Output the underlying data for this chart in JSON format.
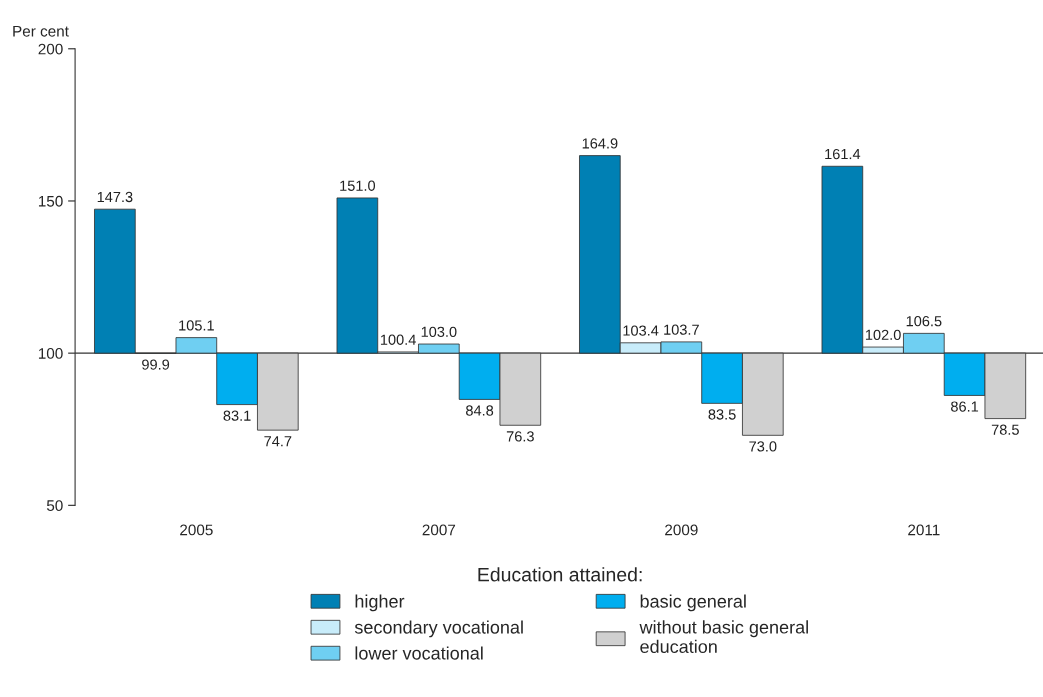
{
  "chart_data": {
    "type": "bar",
    "ylabel": "Per cent",
    "legend_title": "Education attained:",
    "categories": [
      "2005",
      "2007",
      "2009",
      "2011"
    ],
    "series": [
      {
        "name": "higher",
        "color": "#0080b4",
        "base": [
          100,
          100,
          100,
          100
        ],
        "values": [
          47.3,
          51.0,
          64.9,
          61.4
        ],
        "value_labels": [
          "147.3",
          "151.0",
          "164.9",
          "161.4"
        ]
      },
      {
        "name": "secondary vocational",
        "color": "#c8ecfa",
        "base": [
          100,
          100,
          100,
          100
        ],
        "values": [
          -0.1,
          0.4,
          3.4,
          2.0
        ],
        "value_labels": [
          "99.9",
          "100.4",
          "103.4",
          "102.0"
        ]
      },
      {
        "name": "lower vocational",
        "color": "#6fcff2",
        "base": [
          100,
          100,
          100,
          100
        ],
        "values": [
          5.1,
          3.0,
          3.7,
          6.5
        ],
        "value_labels": [
          "105.1",
          "103.0",
          "103.7",
          "106.5"
        ]
      },
      {
        "name": "basic general",
        "color": "#00aeef",
        "base": [
          100,
          100,
          100,
          100
        ],
        "values": [
          -16.9,
          -15.2,
          -16.5,
          -13.9
        ],
        "value_labels": [
          "83.1",
          "84.8",
          "83.5",
          "86.1"
        ]
      },
      {
        "name": "without basic general\neducation",
        "color": "#d0d0d0",
        "base": [
          100,
          100,
          100,
          100
        ],
        "values": [
          -25.3,
          -23.7,
          -27.0,
          -21.5
        ],
        "value_labels": [
          "74.7",
          "76.3",
          "73.0",
          "78.5"
        ]
      }
    ],
    "ylim": [
      50,
      200
    ],
    "yticks": [
      50,
      100,
      150,
      200
    ],
    "ref_lines": [
      {
        "axis": "y",
        "value": 100
      }
    ],
    "grid": false,
    "legend": "bottom"
  }
}
